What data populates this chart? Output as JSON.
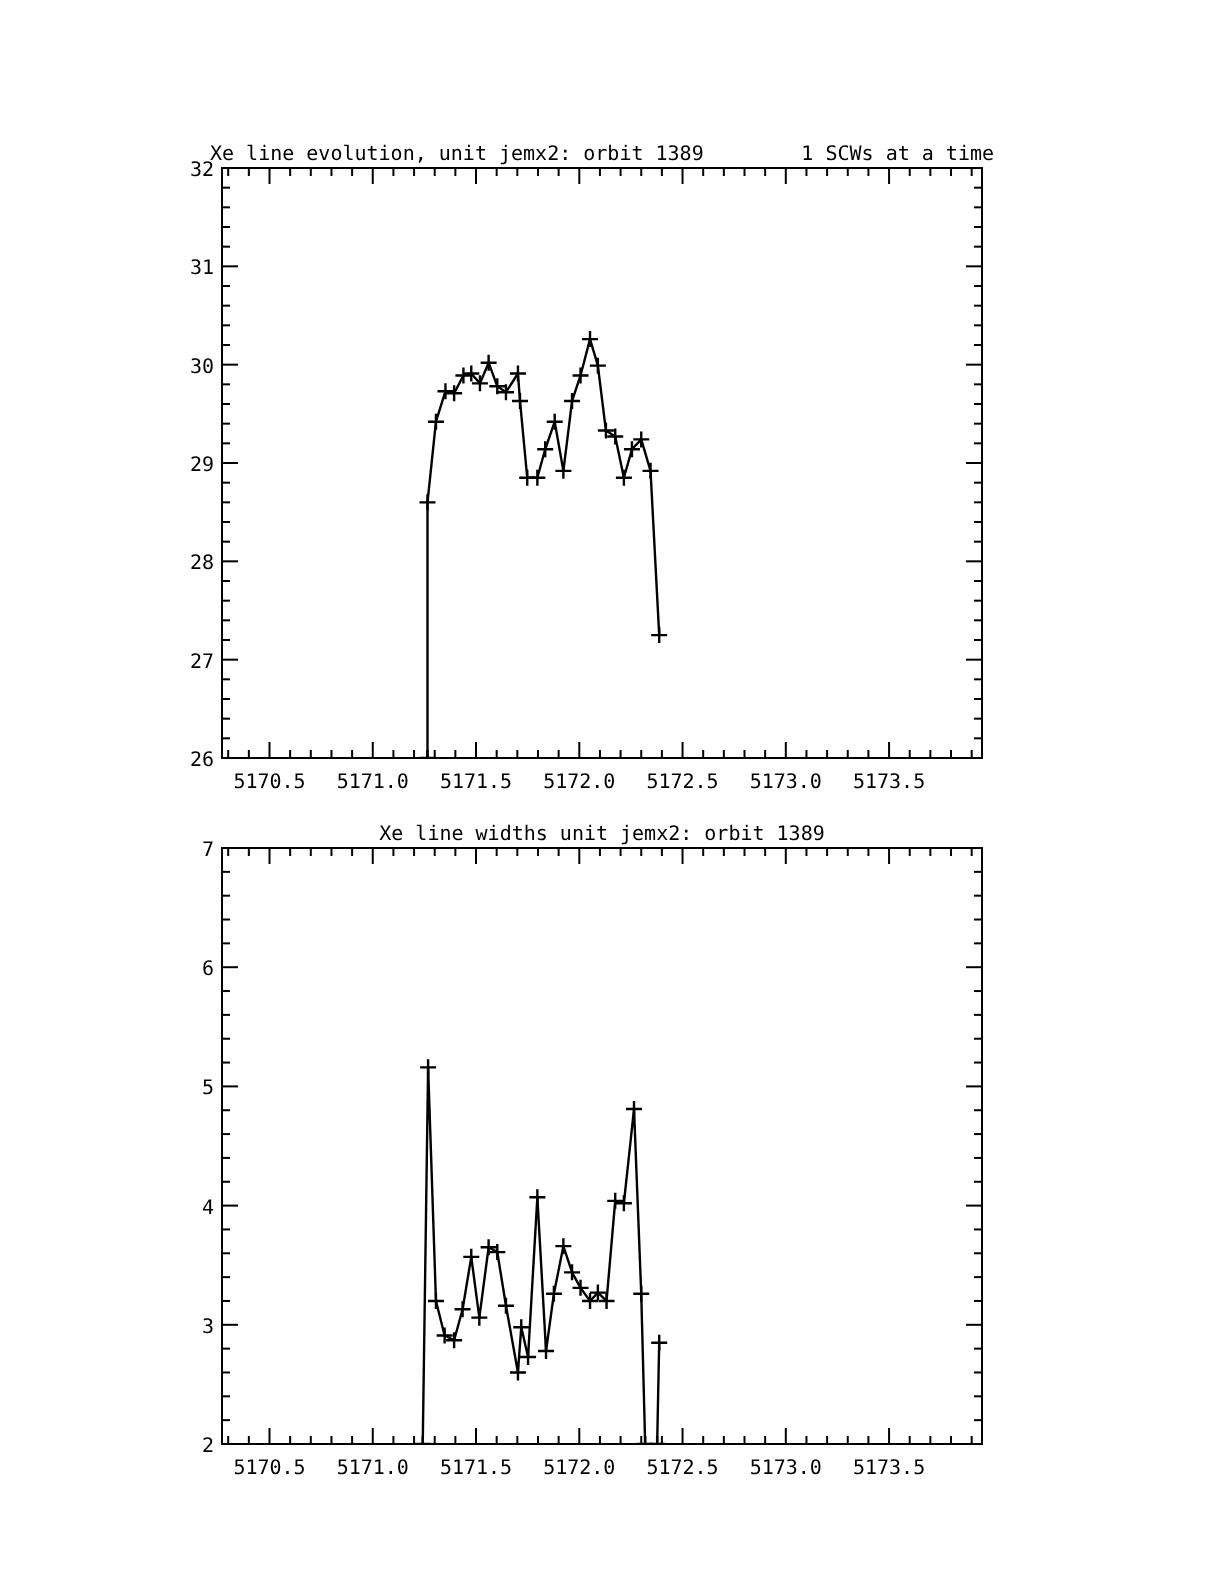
{
  "chart_data": [
    {
      "type": "line",
      "title": "Xe line evolution, unit jemx2: orbit 1389",
      "subtitle": "1 SCWs at a time",
      "marker": "cross",
      "grid": false,
      "xlim": [
        5170.27,
        5173.95
      ],
      "ylim": [
        26,
        32
      ],
      "xticks": [
        {
          "value": 5170.3,
          "label": null
        },
        {
          "value": 5170.4,
          "label": null
        },
        {
          "value": 5170.5,
          "label": "5170.5"
        },
        {
          "value": 5170.6,
          "label": null
        },
        {
          "value": 5170.7,
          "label": null
        },
        {
          "value": 5170.8,
          "label": null
        },
        {
          "value": 5170.9,
          "label": null
        },
        {
          "value": 5171.0,
          "label": "5171.0"
        },
        {
          "value": 5171.1,
          "label": null
        },
        {
          "value": 5171.2,
          "label": null
        },
        {
          "value": 5171.3,
          "label": null
        },
        {
          "value": 5171.4,
          "label": null
        },
        {
          "value": 5171.5,
          "label": "5171.5"
        },
        {
          "value": 5171.6,
          "label": null
        },
        {
          "value": 5171.7,
          "label": null
        },
        {
          "value": 5171.8,
          "label": null
        },
        {
          "value": 5171.9,
          "label": null
        },
        {
          "value": 5172.0,
          "label": "5172.0"
        },
        {
          "value": 5172.1,
          "label": null
        },
        {
          "value": 5172.2,
          "label": null
        },
        {
          "value": 5172.3,
          "label": null
        },
        {
          "value": 5172.4,
          "label": null
        },
        {
          "value": 5172.5,
          "label": "5172.5"
        },
        {
          "value": 5172.6,
          "label": null
        },
        {
          "value": 5172.7,
          "label": null
        },
        {
          "value": 5172.8,
          "label": null
        },
        {
          "value": 5172.9,
          "label": null
        },
        {
          "value": 5173.0,
          "label": "5173.0"
        },
        {
          "value": 5173.1,
          "label": null
        },
        {
          "value": 5173.2,
          "label": null
        },
        {
          "value": 5173.3,
          "label": null
        },
        {
          "value": 5173.4,
          "label": null
        },
        {
          "value": 5173.5,
          "label": "5173.5"
        },
        {
          "value": 5173.6,
          "label": null
        },
        {
          "value": 5173.7,
          "label": null
        },
        {
          "value": 5173.8,
          "label": null
        },
        {
          "value": 5173.9,
          "label": null
        }
      ],
      "yticks": [
        26,
        {
          "value": 26.2,
          "label": null
        },
        {
          "value": 26.4,
          "label": null
        },
        {
          "value": 26.6,
          "label": null
        },
        {
          "value": 26.8,
          "label": null
        },
        27,
        {
          "value": 27.2,
          "label": null
        },
        {
          "value": 27.4,
          "label": null
        },
        {
          "value": 27.6,
          "label": null
        },
        {
          "value": 27.8,
          "label": null
        },
        28,
        {
          "value": 28.2,
          "label": null
        },
        {
          "value": 28.4,
          "label": null
        },
        {
          "value": 28.6,
          "label": null
        },
        {
          "value": 28.8,
          "label": null
        },
        29,
        {
          "value": 29.2,
          "label": null
        },
        {
          "value": 29.4,
          "label": null
        },
        {
          "value": 29.6,
          "label": null
        },
        {
          "value": 29.8,
          "label": null
        },
        30,
        {
          "value": 30.2,
          "label": null
        },
        {
          "value": 30.4,
          "label": null
        },
        {
          "value": 30.6,
          "label": null
        },
        {
          "value": 30.8,
          "label": null
        },
        31,
        {
          "value": 31.2,
          "label": null
        },
        {
          "value": 31.4,
          "label": null
        },
        {
          "value": 31.6,
          "label": null
        },
        {
          "value": 31.8,
          "label": null
        },
        32
      ],
      "series": [
        {
          "color": "#000000",
          "x": [
            5171.265,
            5171.265,
            5171.306,
            5171.352,
            5171.394,
            5171.439,
            5171.477,
            5171.519,
            5171.561,
            5171.603,
            5171.645,
            5171.703,
            5171.713,
            5171.748,
            5171.797,
            5171.835,
            5171.881,
            5171.923,
            5171.965,
            5172.006,
            5172.052,
            5172.09,
            5172.129,
            5172.174,
            5172.216,
            5172.255,
            5172.3,
            5172.345,
            5172.387
          ],
          "values": [
            26,
            28.6,
            29.42,
            29.73,
            29.71,
            29.89,
            29.91,
            29.81,
            30.02,
            29.78,
            29.72,
            29.91,
            29.63,
            28.85,
            28.85,
            29.14,
            29.42,
            28.92,
            29.63,
            29.89,
            30.26,
            29.99,
            29.33,
            29.27,
            28.85,
            29.14,
            29.24,
            28.92,
            27.25
          ]
        }
      ]
    },
    {
      "type": "line",
      "title": "Xe line widths unit jemx2: orbit 1389",
      "marker": "cross",
      "grid": false,
      "xlim": [
        5170.27,
        5173.95
      ],
      "ylim": [
        2,
        7
      ],
      "xticks": [
        {
          "value": 5170.3,
          "label": null
        },
        {
          "value": 5170.4,
          "label": null
        },
        {
          "value": 5170.5,
          "label": "5170.5"
        },
        {
          "value": 5170.6,
          "label": null
        },
        {
          "value": 5170.7,
          "label": null
        },
        {
          "value": 5170.8,
          "label": null
        },
        {
          "value": 5170.9,
          "label": null
        },
        {
          "value": 5171.0,
          "label": "5171.0"
        },
        {
          "value": 5171.1,
          "label": null
        },
        {
          "value": 5171.2,
          "label": null
        },
        {
          "value": 5171.3,
          "label": null
        },
        {
          "value": 5171.4,
          "label": null
        },
        {
          "value": 5171.5,
          "label": "5171.5"
        },
        {
          "value": 5171.6,
          "label": null
        },
        {
          "value": 5171.7,
          "label": null
        },
        {
          "value": 5171.8,
          "label": null
        },
        {
          "value": 5171.9,
          "label": null
        },
        {
          "value": 5172.0,
          "label": "5172.0"
        },
        {
          "value": 5172.1,
          "label": null
        },
        {
          "value": 5172.2,
          "label": null
        },
        {
          "value": 5172.3,
          "label": null
        },
        {
          "value": 5172.4,
          "label": null
        },
        {
          "value": 5172.5,
          "label": "5172.5"
        },
        {
          "value": 5172.6,
          "label": null
        },
        {
          "value": 5172.7,
          "label": null
        },
        {
          "value": 5172.8,
          "label": null
        },
        {
          "value": 5172.9,
          "label": null
        },
        {
          "value": 5173.0,
          "label": "5173.0"
        },
        {
          "value": 5173.1,
          "label": null
        },
        {
          "value": 5173.2,
          "label": null
        },
        {
          "value": 5173.3,
          "label": null
        },
        {
          "value": 5173.4,
          "label": null
        },
        {
          "value": 5173.5,
          "label": "5173.5"
        },
        {
          "value": 5173.6,
          "label": null
        },
        {
          "value": 5173.7,
          "label": null
        },
        {
          "value": 5173.8,
          "label": null
        },
        {
          "value": 5173.9,
          "label": null
        }
      ],
      "yticks": [
        2,
        {
          "value": 2.2,
          "label": null
        },
        {
          "value": 2.4,
          "label": null
        },
        {
          "value": 2.6,
          "label": null
        },
        {
          "value": 2.8,
          "label": null
        },
        3,
        {
          "value": 3.2,
          "label": null
        },
        {
          "value": 3.4,
          "label": null
        },
        {
          "value": 3.6,
          "label": null
        },
        {
          "value": 3.8,
          "label": null
        },
        4,
        {
          "value": 4.2,
          "label": null
        },
        {
          "value": 4.4,
          "label": null
        },
        {
          "value": 4.6,
          "label": null
        },
        {
          "value": 4.8,
          "label": null
        },
        5,
        {
          "value": 5.2,
          "label": null
        },
        {
          "value": 5.4,
          "label": null
        },
        {
          "value": 5.6,
          "label": null
        },
        {
          "value": 5.8,
          "label": null
        },
        6,
        {
          "value": 6.2,
          "label": null
        },
        {
          "value": 6.4,
          "label": null
        },
        {
          "value": 6.6,
          "label": null
        },
        {
          "value": 6.8,
          "label": null
        },
        7
      ],
      "series": [
        {
          "color": "#000000",
          "x": [
            5171.242,
            5171.268,
            5171.306,
            5171.348,
            5171.394,
            5171.435,
            5171.477,
            5171.516,
            5171.561,
            5171.603,
            5171.645,
            5171.703,
            5171.719,
            5171.752,
            5171.797,
            5171.839,
            5171.877,
            5171.923,
            5171.965,
            5172.006,
            5172.052,
            5172.09,
            5172.132,
            5172.174,
            5172.216,
            5172.265,
            5172.3,
            5172.319,
            5172.348,
            5172.377,
            5172.387
          ],
          "values": [
            2,
            5.16,
            3.2,
            2.91,
            2.87,
            3.13,
            3.57,
            3.06,
            3.65,
            3.61,
            3.16,
            2.6,
            2.98,
            2.73,
            4.07,
            2.78,
            3.26,
            3.66,
            3.44,
            3.31,
            3.2,
            3.27,
            3.2,
            4.04,
            4.02,
            4.81,
            3.26,
            2,
            null,
            2,
            2.85
          ]
        }
      ]
    }
  ]
}
